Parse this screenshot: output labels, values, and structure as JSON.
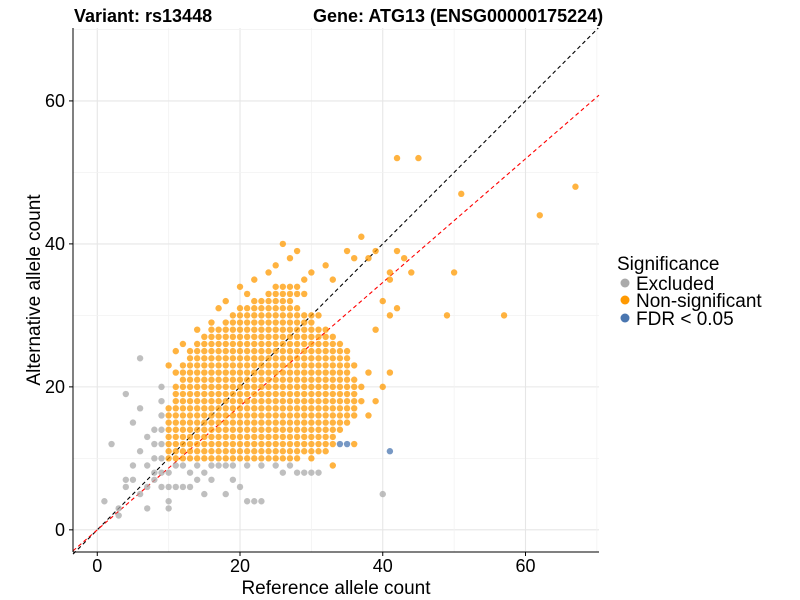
{
  "chart_data": {
    "type": "scatter",
    "title_left": "Variant: rs13448",
    "title_right": "Gene: ATG13 (ENSG00000175224)",
    "xlabel": "Reference allele count",
    "ylabel": "Alternative allele count",
    "xlim": [
      -3.4,
      70.3
    ],
    "ylim": [
      -3.1,
      70.2
    ],
    "xticks": [
      "0",
      "20",
      "40",
      "60"
    ],
    "yticks": [
      "0",
      "20",
      "40",
      "60"
    ],
    "xtick_values": [
      0,
      20,
      40,
      60
    ],
    "ytick_values": [
      0,
      20,
      40,
      60
    ],
    "grid": true,
    "reference_lines": [
      {
        "name": "identity",
        "slope": 1.0,
        "intercept": 0,
        "color": "#000000",
        "style": "dashed"
      },
      {
        "name": "fit",
        "slope": 0.865,
        "intercept": 0,
        "color": "#FF0000",
        "style": "dashed"
      }
    ],
    "legend": {
      "title": "Significance",
      "position": "right",
      "entries": [
        {
          "label": "Excluded",
          "color": "#AAAAAA"
        },
        {
          "label": "Non-significant",
          "color": "#FF9900"
        },
        {
          "label": "FDR < 0.05",
          "color": "#4A76B0"
        }
      ]
    },
    "series": [
      {
        "name": "Excluded",
        "color": "#AAAAAA",
        "points": [
          [
            1,
            4
          ],
          [
            2,
            12
          ],
          [
            3,
            2
          ],
          [
            3,
            3
          ],
          [
            4,
            7
          ],
          [
            5,
            7
          ],
          [
            4,
            19
          ],
          [
            5,
            15
          ],
          [
            6,
            24
          ],
          [
            6,
            5
          ],
          [
            7,
            3
          ],
          [
            7,
            6
          ],
          [
            8,
            8
          ],
          [
            8,
            10
          ],
          [
            8,
            12
          ],
          [
            8,
            14
          ],
          [
            9,
            8
          ],
          [
            9,
            10
          ],
          [
            9,
            12
          ],
          [
            9,
            14
          ],
          [
            9,
            16
          ],
          [
            9,
            18
          ],
          [
            9,
            20
          ],
          [
            7,
            13
          ],
          [
            6,
            17
          ],
          [
            10,
            3
          ],
          [
            10,
            6
          ],
          [
            10,
            8
          ],
          [
            11,
            9
          ],
          [
            12,
            6
          ],
          [
            12,
            9
          ],
          [
            13,
            8
          ],
          [
            14,
            9
          ],
          [
            15,
            5
          ],
          [
            15,
            8
          ],
          [
            16,
            7
          ],
          [
            17,
            9
          ],
          [
            18,
            5
          ],
          [
            18,
            9
          ],
          [
            19,
            7
          ],
          [
            20,
            6
          ],
          [
            21,
            4
          ],
          [
            21,
            9
          ],
          [
            22,
            4
          ],
          [
            23,
            4
          ],
          [
            23,
            9
          ],
          [
            26,
            8
          ],
          [
            28,
            8
          ],
          [
            30,
            8
          ],
          [
            40,
            5
          ],
          [
            10,
            4
          ],
          [
            11,
            6
          ],
          [
            9,
            6
          ],
          [
            8,
            7
          ],
          [
            7,
            9
          ],
          [
            6,
            11
          ],
          [
            5,
            9
          ],
          [
            4,
            6
          ],
          [
            13,
            6
          ],
          [
            14,
            7
          ],
          [
            16,
            9
          ],
          [
            19,
            9
          ],
          [
            25,
            9
          ],
          [
            27,
            9
          ],
          [
            29,
            8
          ],
          [
            31,
            8
          ]
        ]
      },
      {
        "name": "Non-significant",
        "color": "#FF9900",
        "dense_rows": [
          [
            10,
            10,
            28
          ],
          [
            11,
            10,
            31
          ],
          [
            12,
            10,
            33
          ],
          [
            13,
            10,
            33
          ],
          [
            14,
            10,
            34
          ],
          [
            15,
            10,
            35
          ],
          [
            16,
            10,
            36
          ],
          [
            17,
            10,
            36
          ],
          [
            18,
            11,
            37
          ],
          [
            19,
            11,
            36
          ],
          [
            20,
            11,
            36
          ],
          [
            21,
            12,
            36
          ],
          [
            22,
            12,
            35
          ],
          [
            23,
            12,
            36
          ],
          [
            24,
            13,
            35
          ],
          [
            25,
            13,
            35
          ],
          [
            26,
            14,
            34
          ],
          [
            27,
            15,
            33
          ],
          [
            28,
            16,
            32
          ],
          [
            29,
            18,
            30
          ],
          [
            30,
            19,
            31
          ],
          [
            31,
            20,
            28
          ],
          [
            32,
            22,
            27
          ],
          [
            33,
            24,
            29
          ],
          [
            34,
            25,
            28
          ]
        ],
        "points": [
          [
            42,
            52
          ],
          [
            45,
            52
          ],
          [
            51,
            47
          ],
          [
            67,
            48
          ],
          [
            62,
            44
          ],
          [
            50,
            36
          ],
          [
            57,
            30
          ],
          [
            49,
            30
          ],
          [
            41,
            36
          ],
          [
            41,
            35
          ],
          [
            42,
            39
          ],
          [
            43,
            38
          ],
          [
            44,
            36
          ],
          [
            39,
            39
          ],
          [
            38,
            38
          ],
          [
            37,
            41
          ],
          [
            36,
            38
          ],
          [
            35,
            39
          ],
          [
            40,
            32
          ],
          [
            41,
            30
          ],
          [
            42,
            31
          ],
          [
            39,
            28
          ],
          [
            41,
            22
          ],
          [
            40,
            20
          ],
          [
            39,
            18
          ],
          [
            38,
            16
          ],
          [
            26,
            40
          ],
          [
            28,
            39
          ],
          [
            27,
            38
          ],
          [
            25,
            37
          ],
          [
            30,
            36
          ],
          [
            29,
            35
          ],
          [
            33,
            35
          ],
          [
            32,
            37
          ],
          [
            24,
            36
          ],
          [
            22,
            35
          ],
          [
            21,
            33
          ],
          [
            20,
            34
          ],
          [
            17,
            31
          ],
          [
            18,
            32
          ],
          [
            16,
            29
          ],
          [
            14,
            28
          ],
          [
            12,
            26
          ],
          [
            11,
            25
          ],
          [
            10,
            23
          ],
          [
            11,
            22
          ],
          [
            37,
            20
          ],
          [
            38,
            22
          ],
          [
            36,
            12
          ],
          [
            33,
            9
          ],
          [
            30,
            10
          ],
          [
            32,
            11
          ]
        ]
      },
      {
        "name": "FDR < 0.05",
        "color": "#4A76B0",
        "points": [
          [
            34,
            12
          ],
          [
            35,
            12
          ],
          [
            41,
            11
          ]
        ]
      }
    ]
  }
}
